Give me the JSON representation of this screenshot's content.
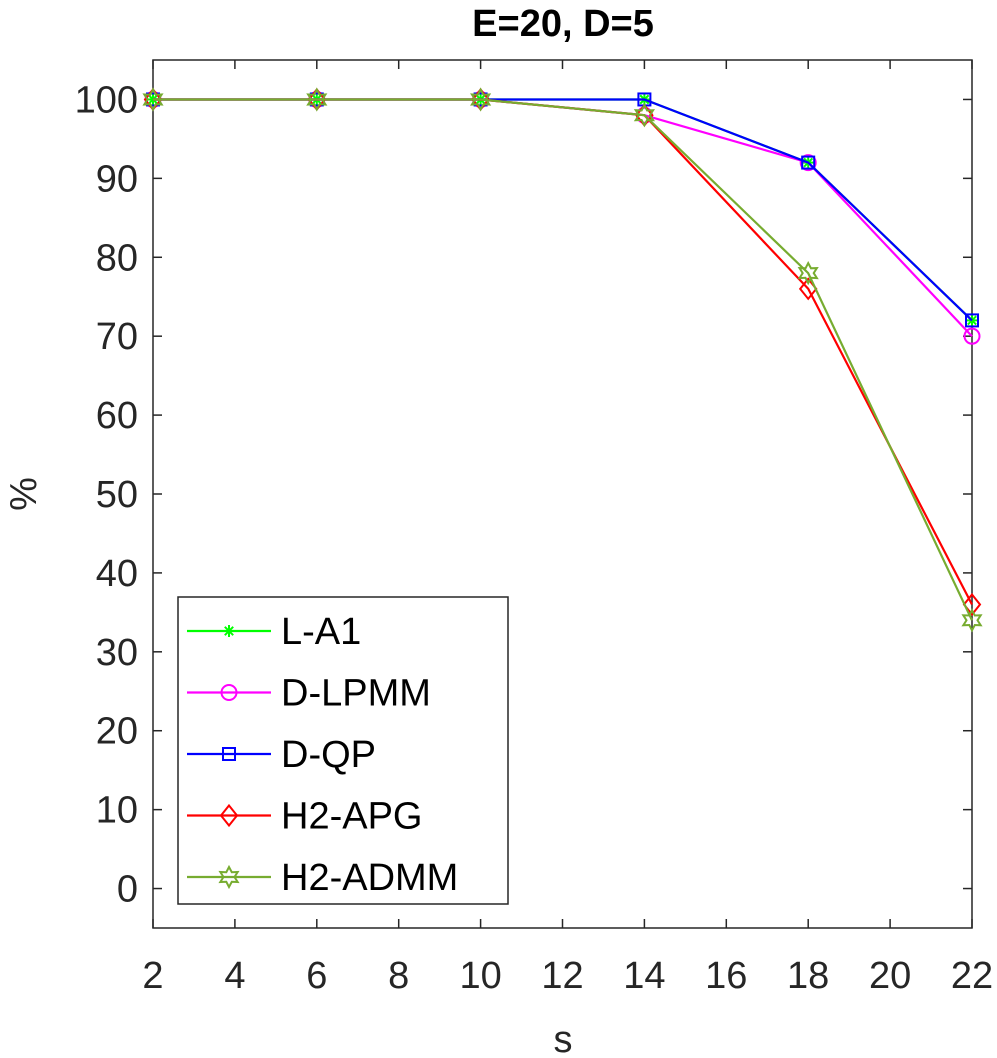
{
  "chart_data": {
    "type": "line",
    "title": "E=20, D=5",
    "xlabel": "s",
    "ylabel": "%",
    "xlim": [
      2,
      22
    ],
    "ylim": [
      -5,
      105
    ],
    "x": [
      2,
      6,
      10,
      14,
      18,
      22
    ],
    "x_ticks": [
      "2",
      "4",
      "6",
      "8",
      "10",
      "12",
      "14",
      "16",
      "18",
      "20",
      "22"
    ],
    "y_ticks": [
      "0",
      "10",
      "20",
      "30",
      "40",
      "50",
      "60",
      "70",
      "80",
      "90",
      "100"
    ],
    "grid": false,
    "legend_position": "bottom-left",
    "series": [
      {
        "name": "L-A1",
        "color": "#00ff00",
        "marker": "asterisk",
        "values": [
          100,
          100,
          100,
          100,
          92,
          72
        ]
      },
      {
        "name": "D-LPMM",
        "color": "#ff00ff",
        "marker": "circle",
        "values": [
          100,
          100,
          100,
          98,
          92,
          70
        ]
      },
      {
        "name": "D-QP",
        "color": "#0000ff",
        "marker": "square",
        "values": [
          100,
          100,
          100,
          100,
          92,
          72
        ]
      },
      {
        "name": "H2-APG",
        "color": "#ff0000",
        "marker": "diamond",
        "values": [
          100,
          100,
          100,
          98,
          76,
          36
        ]
      },
      {
        "name": "H2-ADMM",
        "color": "#77ac30",
        "marker": "hexagram",
        "values": [
          100,
          100,
          100,
          98,
          78,
          34
        ]
      }
    ]
  }
}
